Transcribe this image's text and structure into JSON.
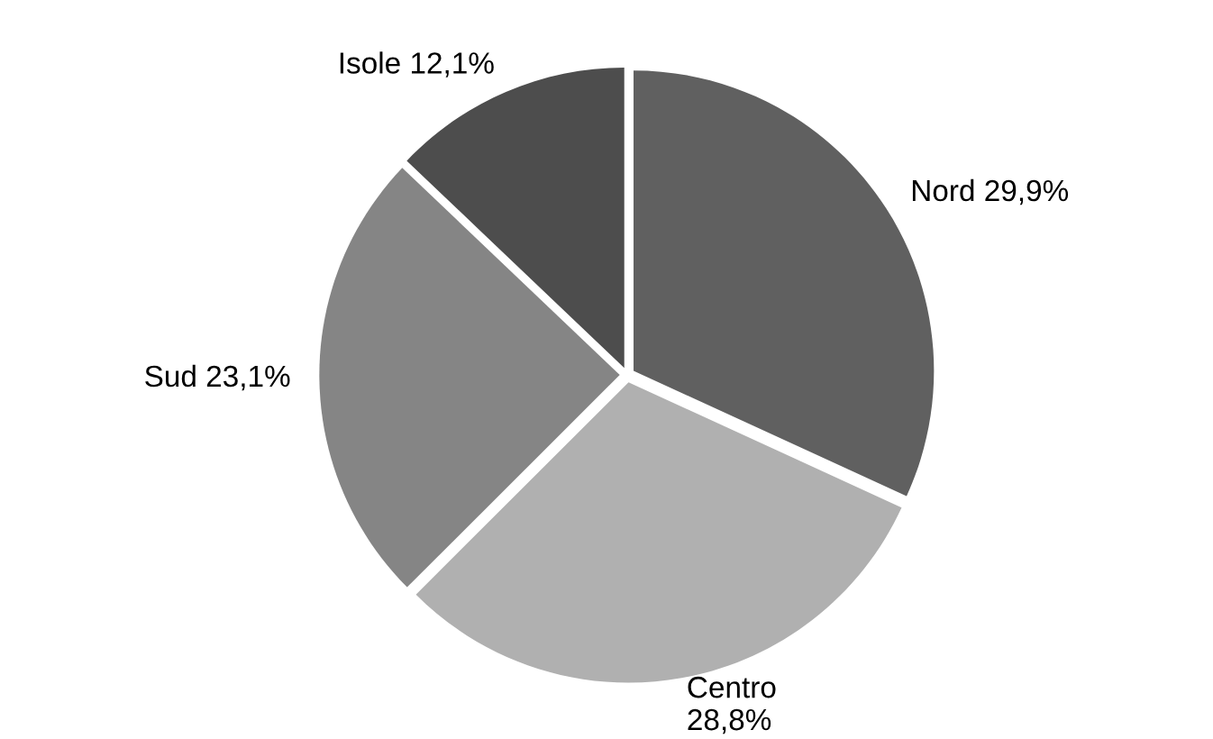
{
  "chart_data": {
    "type": "pie",
    "categories": [
      "Nord",
      "Centro",
      "Sud",
      "Isole"
    ],
    "values": [
      29.9,
      28.8,
      23.1,
      12.1
    ],
    "value_labels": [
      "29,9%",
      "28,8%",
      "23,1%",
      "12,1%"
    ],
    "colors": [
      "#606060",
      "#b0b0b0",
      "#858585",
      "#4d4d4d"
    ],
    "legend": false
  }
}
